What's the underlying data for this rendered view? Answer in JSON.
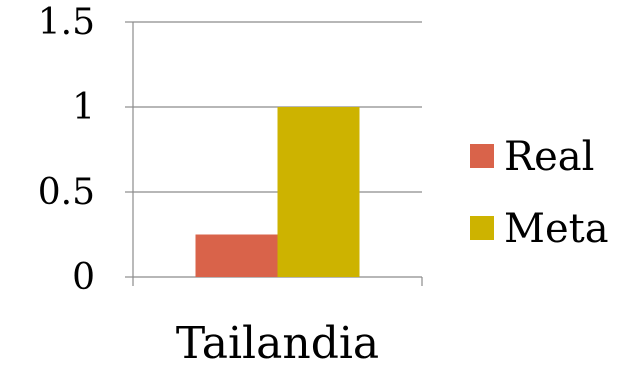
{
  "chart_data": {
    "type": "bar",
    "categories": [
      "Tailandia"
    ],
    "series": [
      {
        "name": "Real",
        "values": [
          0.25
        ],
        "color": "#D9634A"
      },
      {
        "name": "Meta",
        "values": [
          1
        ],
        "color": "#CDB300"
      }
    ],
    "ylim": [
      0,
      1.5
    ],
    "yticks": [
      0,
      0.5,
      1,
      1.5
    ],
    "ytick_labels": [
      "0",
      "0.5",
      "1",
      "1.5"
    ],
    "grid": true,
    "legend_position": "right",
    "gridline_color": "#8C8C8C"
  }
}
